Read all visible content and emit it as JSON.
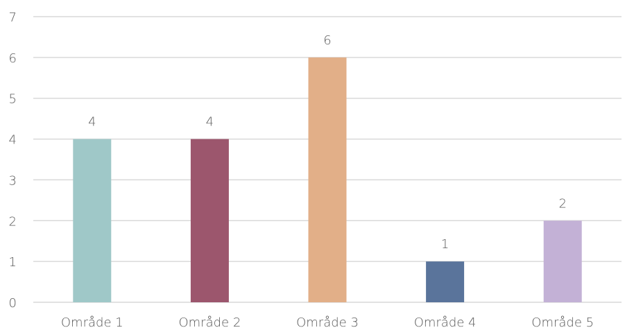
{
  "chart_data": {
    "type": "bar",
    "categories": [
      "Område 1",
      "Område 2",
      "Område 3",
      "Område 4",
      "Område 5"
    ],
    "values": [
      4,
      4,
      6,
      1,
      2
    ],
    "colors": [
      "#9fc8c8",
      "#9c566d",
      "#e2af88",
      "#5a749b",
      "#c3b1d6"
    ],
    "gridline_color": "#d9d9d9",
    "ylim": [
      0,
      7
    ],
    "yticks": [
      "0",
      "1",
      "2",
      "3",
      "4",
      "5",
      "6",
      "7"
    ],
    "grid": true,
    "legend": "none",
    "data_labels": [
      "4",
      "4",
      "6",
      "1",
      "2"
    ]
  }
}
